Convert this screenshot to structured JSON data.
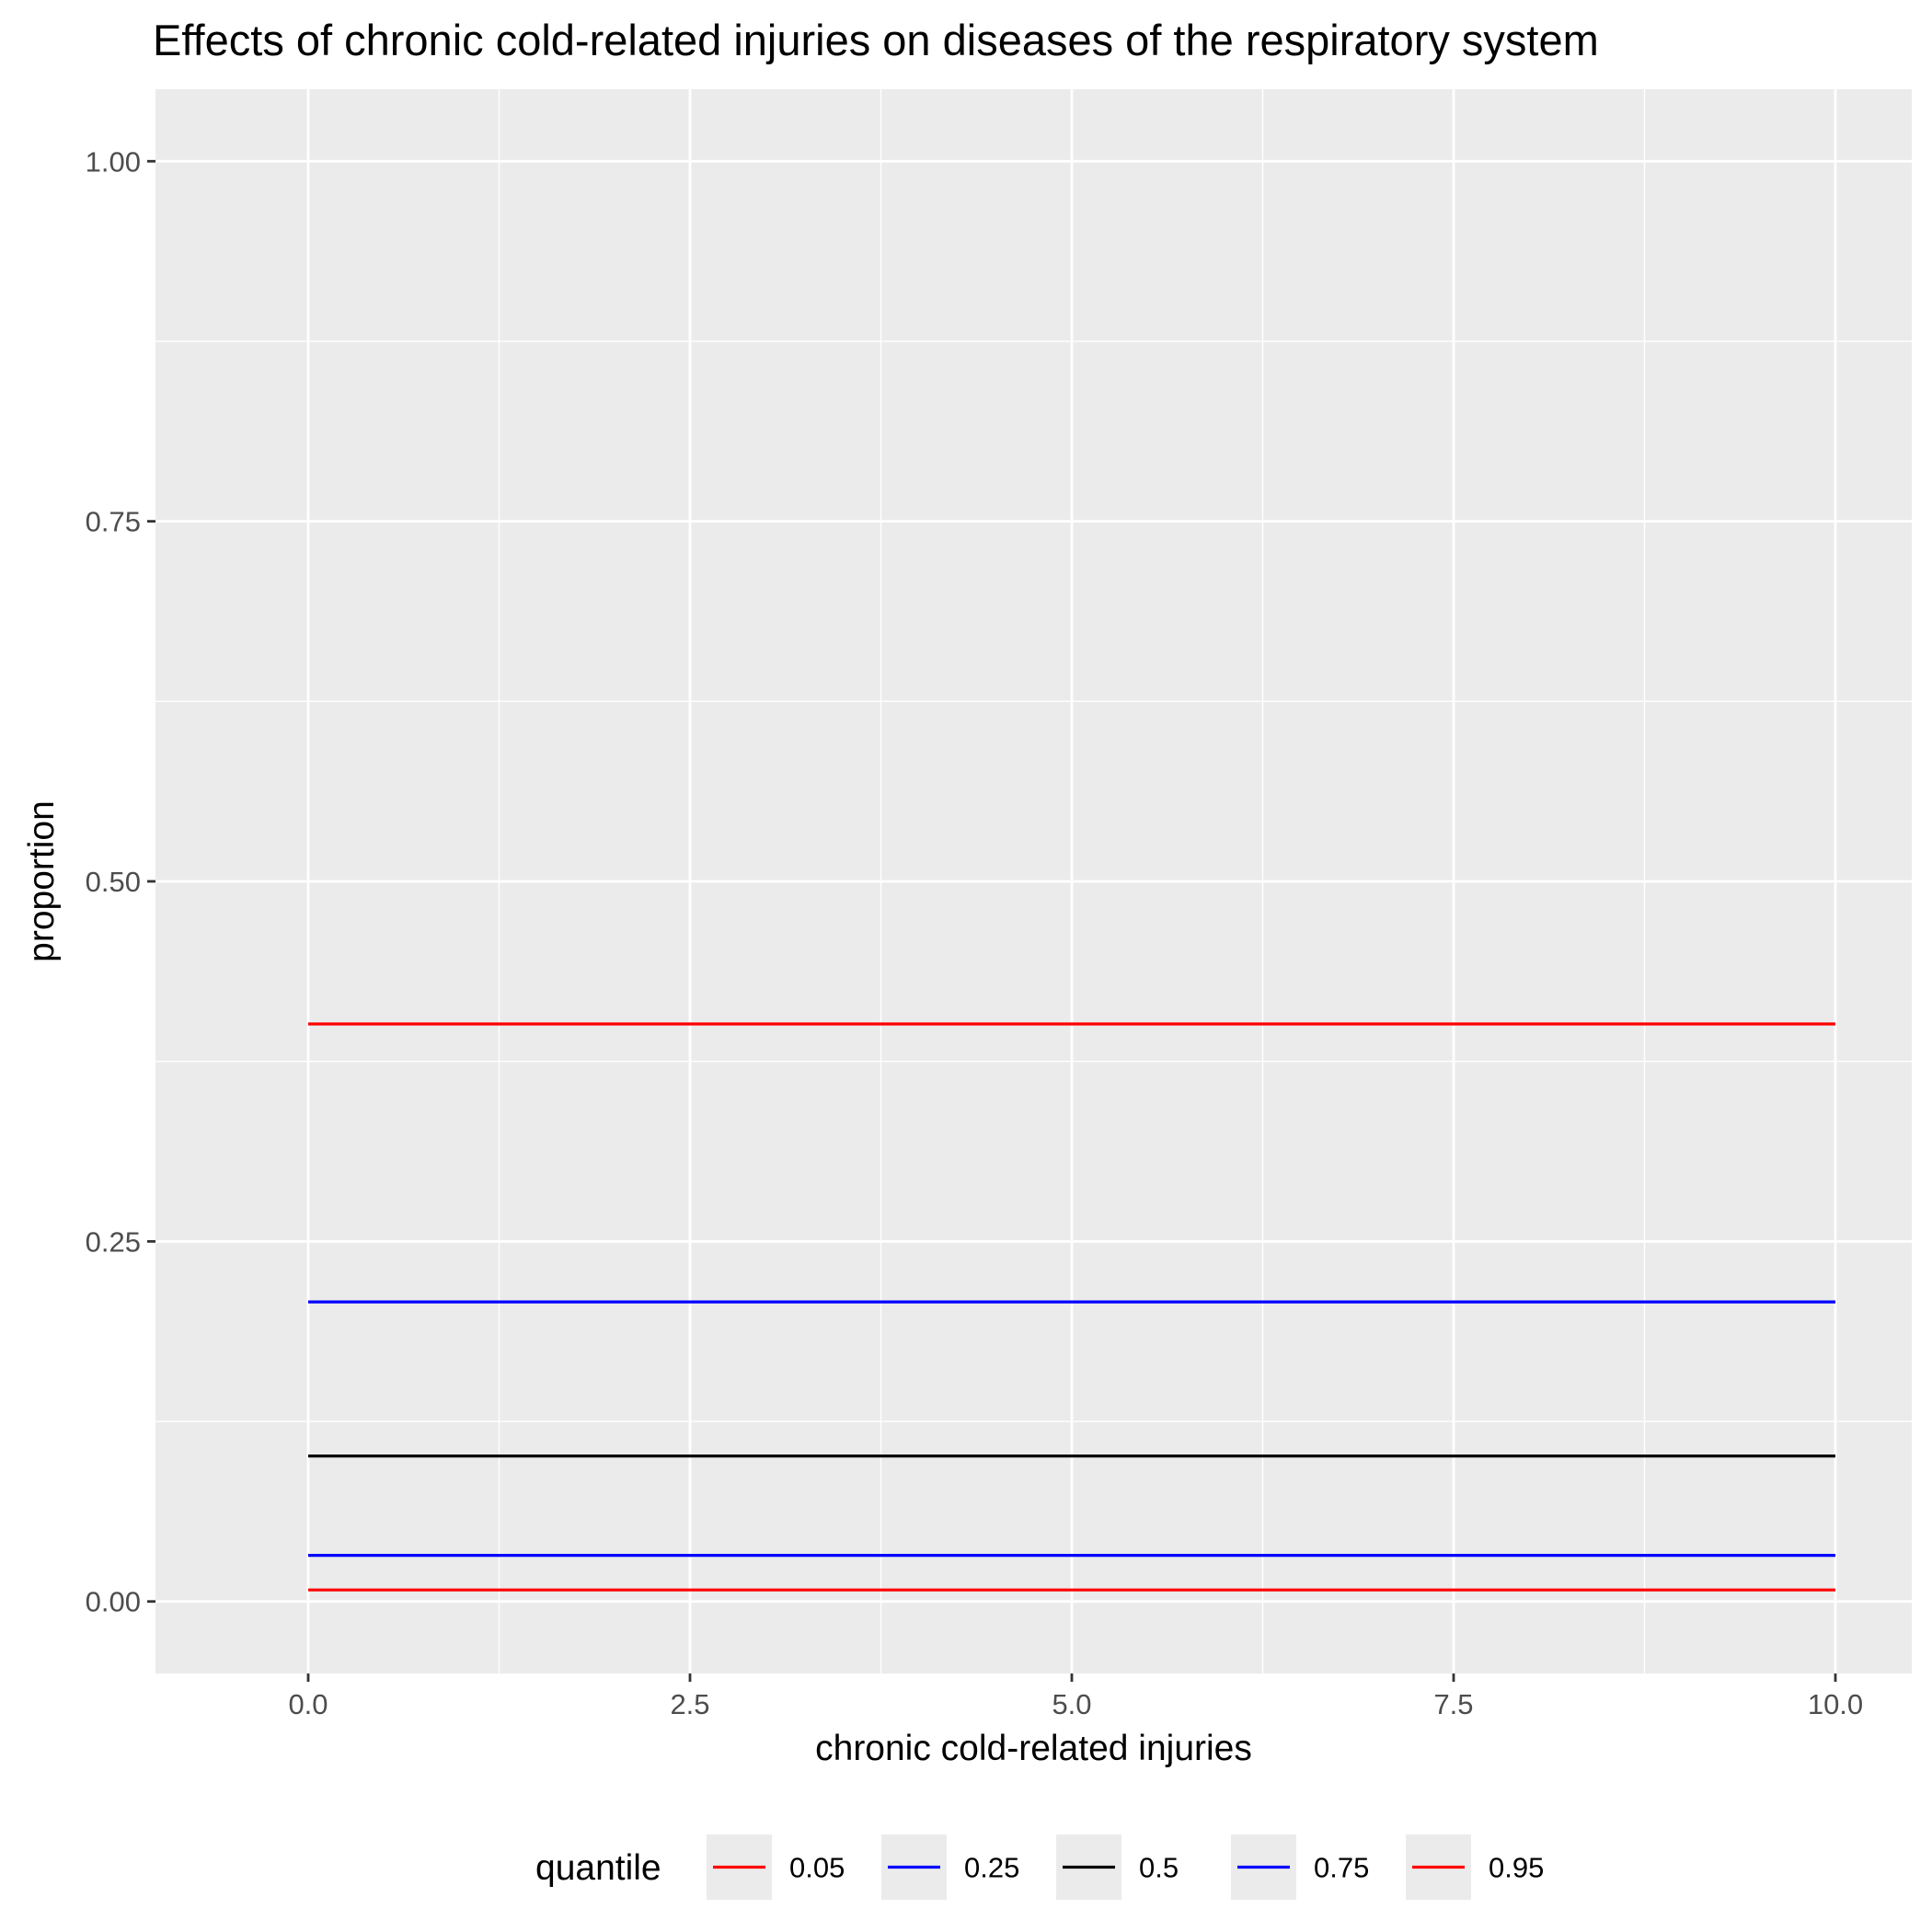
{
  "chart_data": {
    "type": "line",
    "title": "Effects of chronic cold-related injuries on diseases of the respiratory system",
    "xlabel": "chronic cold-related injuries",
    "ylabel": "proportion",
    "xlim": [
      -1,
      10.5
    ],
    "ylim": [
      -0.05,
      1.05
    ],
    "x_ticks": [
      0,
      2.5,
      5,
      7.5,
      10
    ],
    "x_tick_labels": [
      "0.0",
      "2.5",
      "5.0",
      "7.5",
      "10.0"
    ],
    "y_ticks": [
      0,
      0.25,
      0.5,
      0.75,
      1.0
    ],
    "y_tick_labels": [
      "0.00",
      "0.25",
      "0.50",
      "0.75",
      "1.00"
    ],
    "grid": true,
    "background": "#ebebeb",
    "legend": {
      "title": "quantile",
      "position": "bottom"
    },
    "series": [
      {
        "name": "0.05",
        "color": "#ff0000",
        "x": [
          0,
          10
        ],
        "y": [
          0.008,
          0.008
        ]
      },
      {
        "name": "0.25",
        "color": "#0000ff",
        "x": [
          0,
          10
        ],
        "y": [
          0.032,
          0.032
        ]
      },
      {
        "name": "0.5",
        "color": "#000000",
        "x": [
          0,
          10
        ],
        "y": [
          0.101,
          0.101
        ]
      },
      {
        "name": "0.75",
        "color": "#0000ff",
        "x": [
          0,
          10
        ],
        "y": [
          0.208,
          0.208
        ]
      },
      {
        "name": "0.95",
        "color": "#ff0000",
        "x": [
          0,
          10
        ],
        "y": [
          0.401,
          0.401
        ]
      }
    ]
  }
}
